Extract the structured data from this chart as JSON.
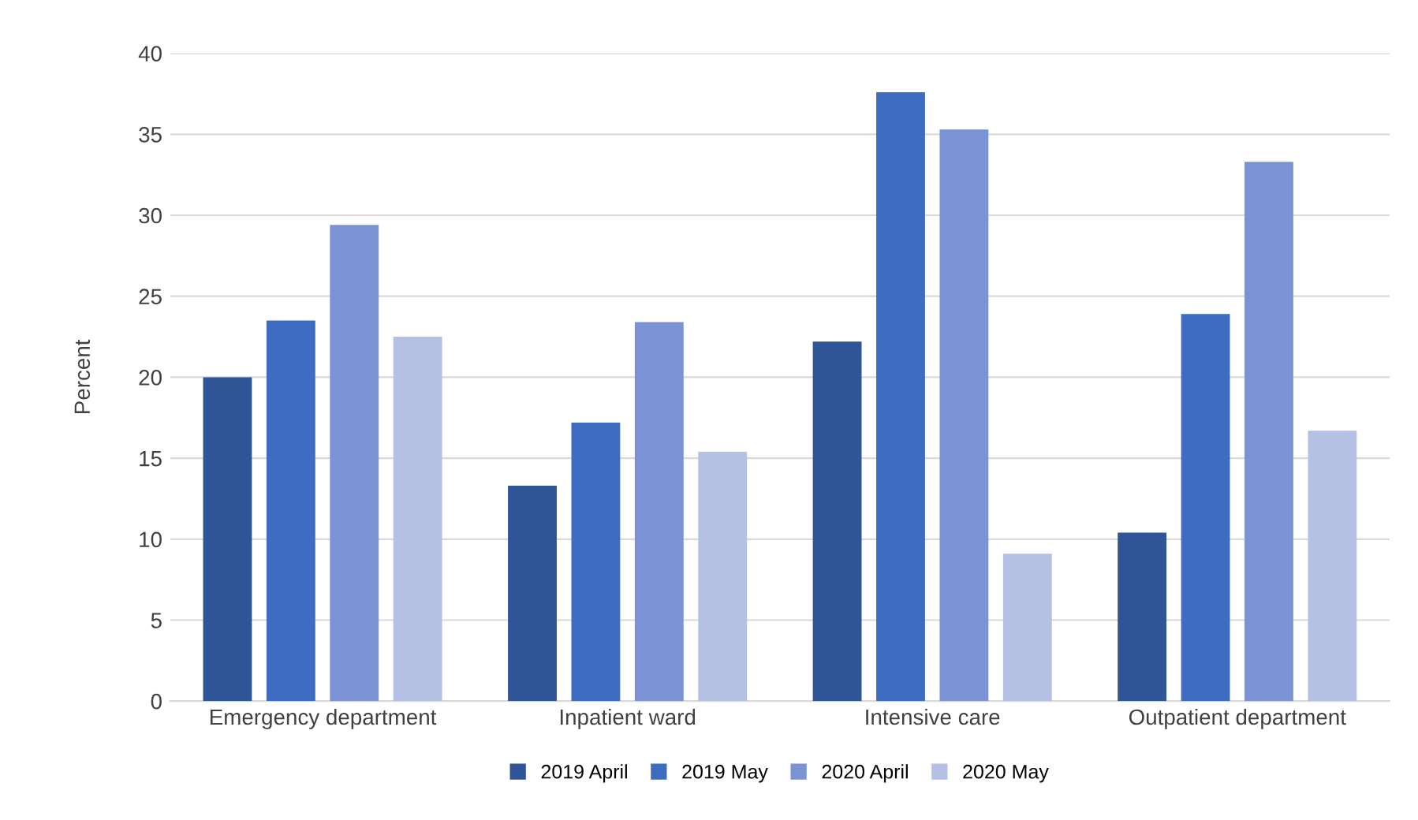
{
  "chart_data": {
    "type": "bar",
    "ylabel": "Percent",
    "categories": [
      "Emergency department",
      "Inpatient ward",
      "Intensive care",
      "Outpatient department"
    ],
    "series": [
      {
        "name": "2019 April",
        "color": "#2f5597",
        "values": [
          20.0,
          13.3,
          22.2,
          10.4
        ]
      },
      {
        "name": "2019 May",
        "color": "#3d6cc0",
        "values": [
          23.5,
          17.2,
          37.6,
          23.9
        ]
      },
      {
        "name": "2020 April",
        "color": "#7b93d4",
        "values": [
          29.4,
          23.4,
          35.3,
          33.3
        ]
      },
      {
        "name": "2020 May",
        "color": "#b4c0e4",
        "values": [
          22.5,
          15.4,
          9.1,
          16.7
        ]
      }
    ],
    "ylim": [
      0,
      40
    ],
    "yticks": [
      0,
      5,
      10,
      15,
      20,
      25,
      30,
      35,
      40
    ],
    "grid": "y",
    "legend": "bottom"
  }
}
